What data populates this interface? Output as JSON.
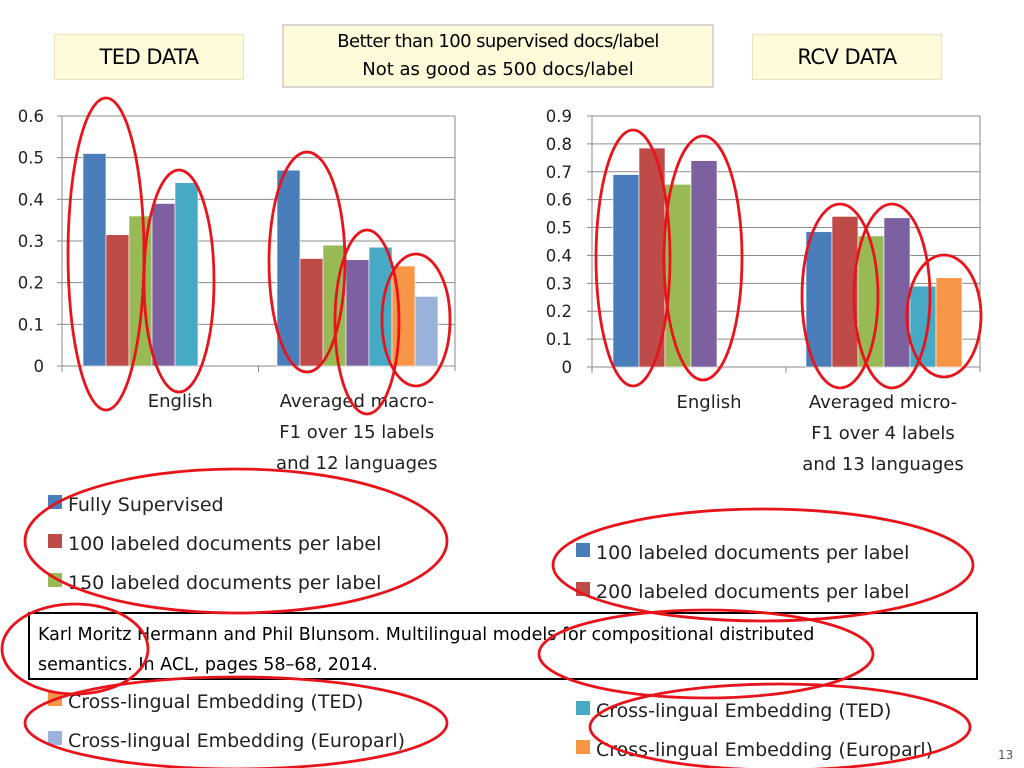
{
  "header": {
    "ted_label": "TED DATA",
    "rcv_label": "RCV DATA",
    "note_line1": "Better than 100 supervised docs/label",
    "note_line2": "Not as good as 500 docs/label"
  },
  "citation": {
    "line1": "Karl Moritz Hermann and Phil Blunsom. Multilingual models for compositional distributed",
    "line2": "semantics. In ACL, pages 58–68, 2014."
  },
  "page_number": "13",
  "chart_data": [
    {
      "type": "bar",
      "title": "TED DATA",
      "categories": [
        [
          "English"
        ],
        [
          "Averaged macro-",
          "F1 over 15 labels",
          "and 12 languages"
        ]
      ],
      "ylim": [
        0,
        0.6
      ],
      "yticks": [
        0,
        0.1,
        0.2,
        0.3,
        0.4,
        0.5,
        0.6
      ],
      "ytick_labels": [
        "0",
        "0.1",
        "0.2",
        "0.3",
        "0.4",
        "0.5",
        "0.6"
      ],
      "grid": true,
      "series": [
        {
          "name": "Fully Supervised",
          "color": "#4a7ebb",
          "values": [
            0.51,
            0.47
          ]
        },
        {
          "name": "100 labeled documents per label",
          "color": "#be4b48",
          "values": [
            0.315,
            0.258
          ]
        },
        {
          "name": "150 labeled documents per label",
          "color": "#98b954",
          "values": [
            0.36,
            0.29
          ]
        },
        {
          "name": "",
          "color": "#7d60a0",
          "values": [
            0.39,
            0.255
          ]
        },
        {
          "name": "",
          "color": "#46aac5",
          "values": [
            0.44,
            0.285
          ]
        },
        {
          "name": "Cross-lingual Embedding (TED)",
          "color": "#f79646",
          "values": [
            null,
            0.24
          ]
        },
        {
          "name": "Cross-lingual Embedding (Europarl)",
          "color": "#9bb3da",
          "values": [
            null,
            0.167
          ]
        }
      ],
      "legend_top": [
        "Fully Supervised",
        "100 labeled documents per label",
        "150 labeled documents per label"
      ],
      "legend_bottom": [
        "Cross-lingual Embedding (TED)",
        "Cross-lingual Embedding (Europarl)"
      ],
      "legend_top_colors": [
        "#4a7ebb",
        "#be4b48",
        "#98b954"
      ],
      "legend_bottom_colors": [
        "#f79646",
        "#9bb3da"
      ]
    },
    {
      "type": "bar",
      "title": "RCV DATA",
      "categories": [
        [
          "English"
        ],
        [
          "Averaged micro-",
          "F1 over 4 labels",
          "and 13 languages"
        ]
      ],
      "ylim": [
        0,
        0.9
      ],
      "yticks": [
        0,
        0.1,
        0.2,
        0.3,
        0.4,
        0.5,
        0.6,
        0.7,
        0.8,
        0.9
      ],
      "ytick_labels": [
        "0",
        "0.1",
        "0.2",
        "0.3",
        "0.4",
        "0.5",
        "0.6",
        "0.7",
        "0.8",
        "0.9"
      ],
      "grid": true,
      "series": [
        {
          "name": "100 labeled documents per label",
          "color": "#4a7ebb",
          "values": [
            0.69,
            0.485
          ]
        },
        {
          "name": "200 labeled documents per label",
          "color": "#be4b48",
          "values": [
            0.785,
            0.54
          ]
        },
        {
          "name": "",
          "color": "#98b954",
          "values": [
            0.655,
            0.47
          ]
        },
        {
          "name": "",
          "color": "#7d60a0",
          "values": [
            0.74,
            0.535
          ]
        },
        {
          "name": "Cross-lingual Embedding (TED)",
          "color": "#46aac5",
          "values": [
            null,
            0.29
          ]
        },
        {
          "name": "Cross-lingual Embedding (Europarl)",
          "color": "#f79646",
          "values": [
            null,
            0.32
          ]
        }
      ],
      "legend_top": [
        "100 labeled documents per label",
        "200 labeled documents per label"
      ],
      "legend_bottom": [
        "Cross-lingual Embedding (TED)",
        "Cross-lingual Embedding (Europarl)"
      ],
      "legend_top_colors": [
        "#4a7ebb",
        "#be4b48"
      ],
      "legend_bottom_colors": [
        "#46aac5",
        "#f79646"
      ]
    }
  ],
  "colors": {
    "annotation": "#e8141c"
  }
}
